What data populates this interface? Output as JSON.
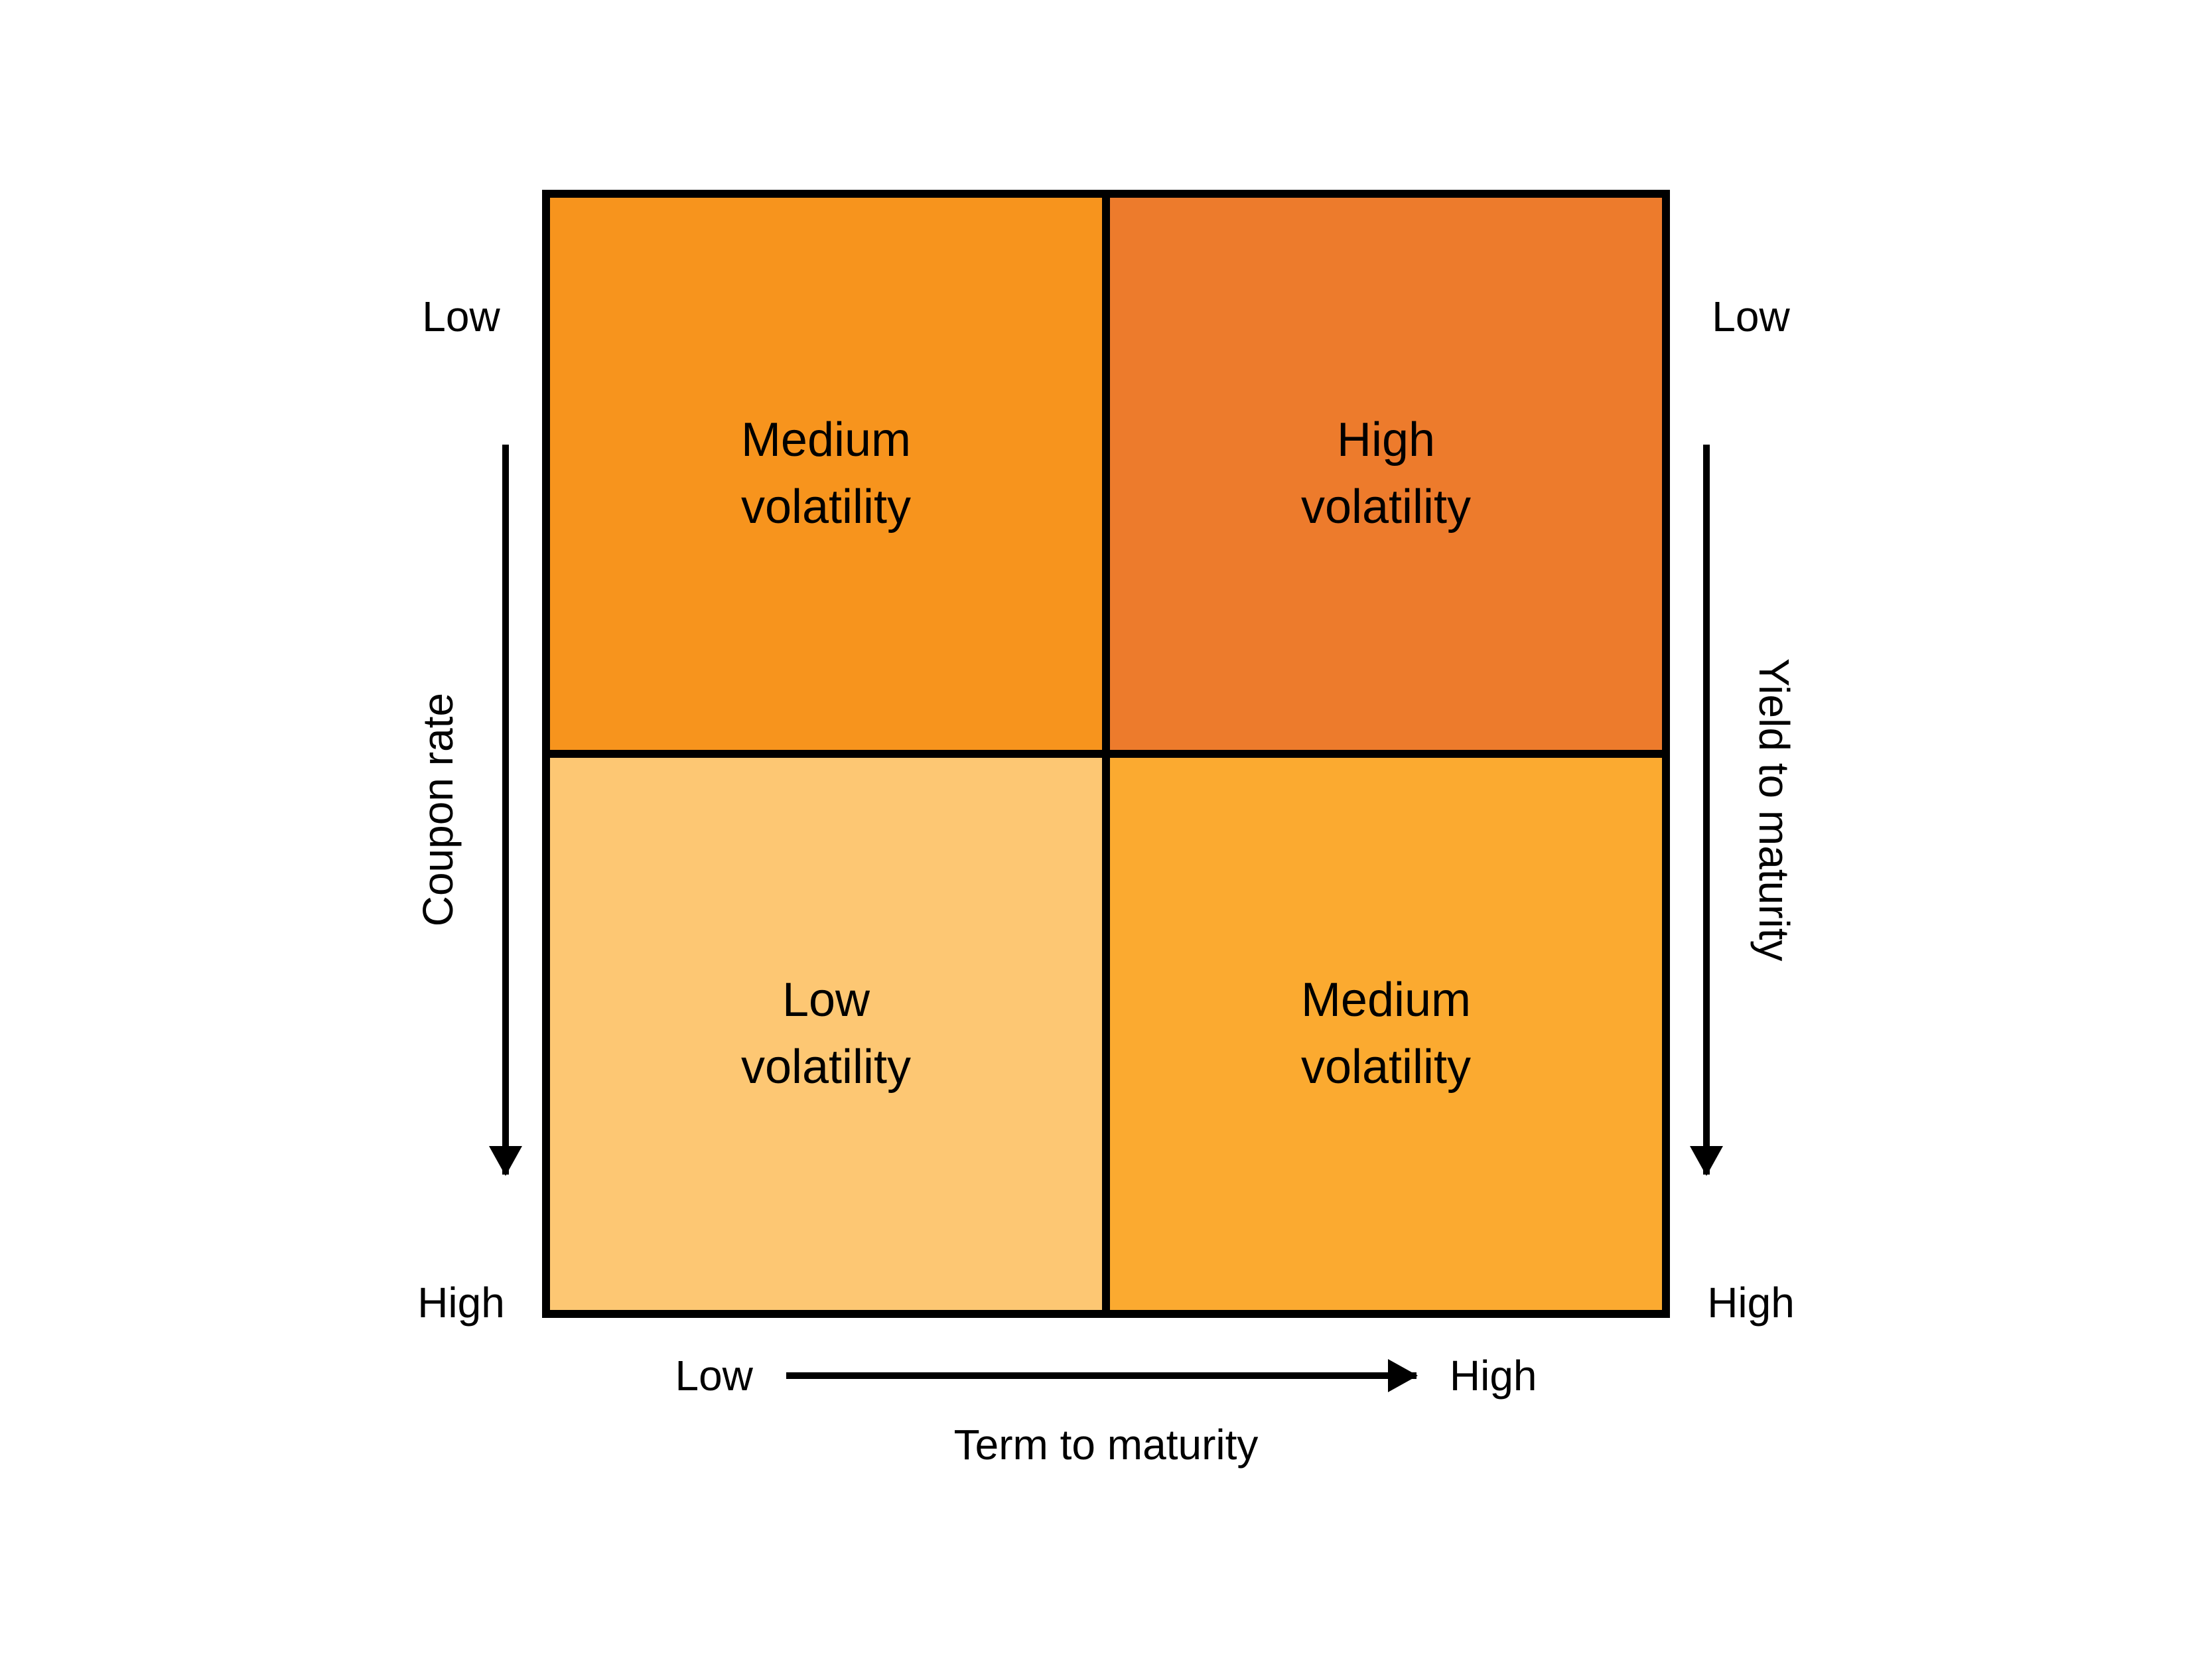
{
  "diagram": {
    "type": "quadrant-matrix",
    "background_color": "#ffffff",
    "border_color": "#000000",
    "border_width_outer": 12,
    "border_width_inner": 12,
    "text_color": "#000000",
    "font_family": "Arial, Helvetica, sans-serif",
    "cell_font_size": 72,
    "axis_font_size": 64,
    "matrix_width": 1700,
    "matrix_height": 1700,
    "quadrants": {
      "top_left": {
        "line1": "Medium",
        "line2": "volatility",
        "bg_color": "#f7941d"
      },
      "top_right": {
        "line1": "High",
        "line2": "volatility",
        "bg_color": "#ed7b2c"
      },
      "bottom_left": {
        "line1": "Low",
        "line2": "volatility",
        "bg_color": "#fdc773"
      },
      "bottom_right": {
        "line1": "Medium",
        "line2": "volatility",
        "bg_color": "#fbaa30"
      }
    },
    "left_axis": {
      "title": "Coupon rate",
      "top_label": "Low",
      "bottom_label": "High",
      "arrow_direction": "down",
      "arrow_length": 1100,
      "arrow_stroke": 10,
      "arrow_color": "#000000"
    },
    "right_axis": {
      "title": "Yield to maturity",
      "top_label": "Low",
      "bottom_label": "High",
      "arrow_direction": "down",
      "arrow_length": 1100,
      "arrow_stroke": 10,
      "arrow_color": "#000000"
    },
    "bottom_axis": {
      "title": "Term to maturity",
      "left_label": "Low",
      "right_label": "High",
      "arrow_direction": "right",
      "arrow_length": 950,
      "arrow_stroke": 10,
      "arrow_color": "#000000"
    }
  }
}
